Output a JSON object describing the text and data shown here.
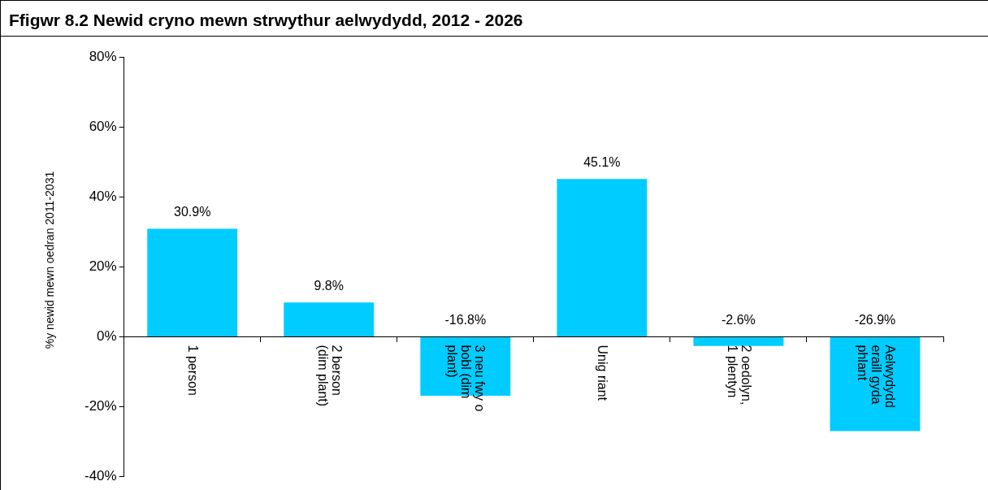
{
  "chart_data": {
    "type": "bar",
    "title": "Ffigwr 8.2 Newid cryno mewn strwythur aelwydydd, 2012 - 2026",
    "ylabel": "%y newid mewn oedran 2011-2031",
    "categories": [
      "1 person",
      "2 berson (dim plant)",
      "3 neu fwy o bobl (dim plant)",
      "Unig riant",
      "2 oedolyn, 1 plentyn",
      "Aelwydydd eraill gyda phlant"
    ],
    "values": [
      30.9,
      9.8,
      -16.8,
      45.1,
      -2.6,
      -26.9
    ],
    "value_labels": [
      "30.9%",
      "9.8%",
      "-16.8%",
      "45.1%",
      "-2.6%",
      "-26.9%"
    ],
    "color": "#00ccff",
    "ylim": [
      -40,
      80
    ],
    "yticks": [
      {
        "value": -40,
        "label": "-40%"
      },
      {
        "value": -20,
        "label": "-20%"
      },
      {
        "value": 0,
        "label": "0%"
      },
      {
        "value": 20,
        "label": "20%"
      },
      {
        "value": 40,
        "label": "40%"
      },
      {
        "value": 60,
        "label": "60%"
      },
      {
        "value": 80,
        "label": "80%"
      }
    ],
    "grid": false,
    "legend": false
  }
}
